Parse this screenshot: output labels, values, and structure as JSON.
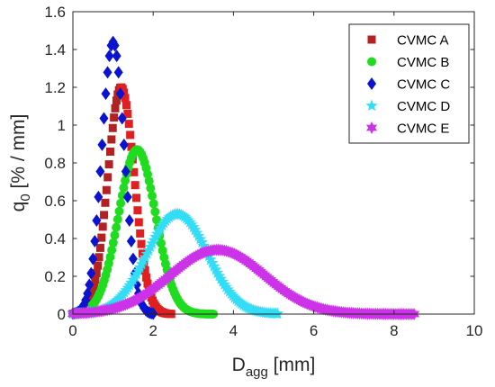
{
  "chart_data": {
    "type": "scatter",
    "xlabel": {
      "main": "D",
      "sub": "agg",
      "unit": " [mm]"
    },
    "ylabel": {
      "main": "q",
      "sub": "0",
      "unit": " [% / mm]"
    },
    "xlim": [
      0,
      10
    ],
    "ylim": [
      0,
      1.6
    ],
    "xticks": [
      "0",
      "2",
      "4",
      "6",
      "8",
      "10"
    ],
    "yticks": [
      "0",
      "0.2",
      "0.4",
      "0.6",
      "0.8",
      "1",
      "1.2",
      "1.4",
      "1.6"
    ],
    "grid": false,
    "legend_position": "top-right",
    "series": [
      {
        "name": "CVMC A",
        "marker": "square",
        "color": "#b22222",
        "color2": "#e02020",
        "mean": 1.2,
        "sd": 0.33,
        "xmin": 0.0,
        "xmax": 2.45,
        "n": 80,
        "peak": 1.2
      },
      {
        "name": "CVMC B",
        "marker": "circle",
        "color": "#1fdc1f",
        "color2": "#1fdc1f",
        "mean": 1.6,
        "sd": 0.46,
        "xmin": 0.0,
        "xmax": 3.5,
        "n": 95,
        "peak": 0.87
      },
      {
        "name": "CVMC C",
        "marker": "diamond",
        "color": "#0a14d0",
        "color2": "#0a14d0",
        "mean": 1.0,
        "sd": 0.28,
        "xmin": 0.0,
        "xmax": 2.0,
        "n": 45,
        "peak": 1.44
      },
      {
        "name": "CVMC D",
        "marker": "star",
        "color": "#33ddf5",
        "color2": "#33ddf5",
        "mean": 2.6,
        "sd": 0.75,
        "xmin": 0.0,
        "xmax": 5.1,
        "n": 120,
        "peak": 0.53
      },
      {
        "name": "CVMC E",
        "marker": "hexagram",
        "color": "#cc33e8",
        "color2": "#cc33e8",
        "mean": 3.6,
        "sd": 1.17,
        "xmin": 0.0,
        "xmax": 8.5,
        "n": 170,
        "peak": 0.34
      }
    ]
  }
}
